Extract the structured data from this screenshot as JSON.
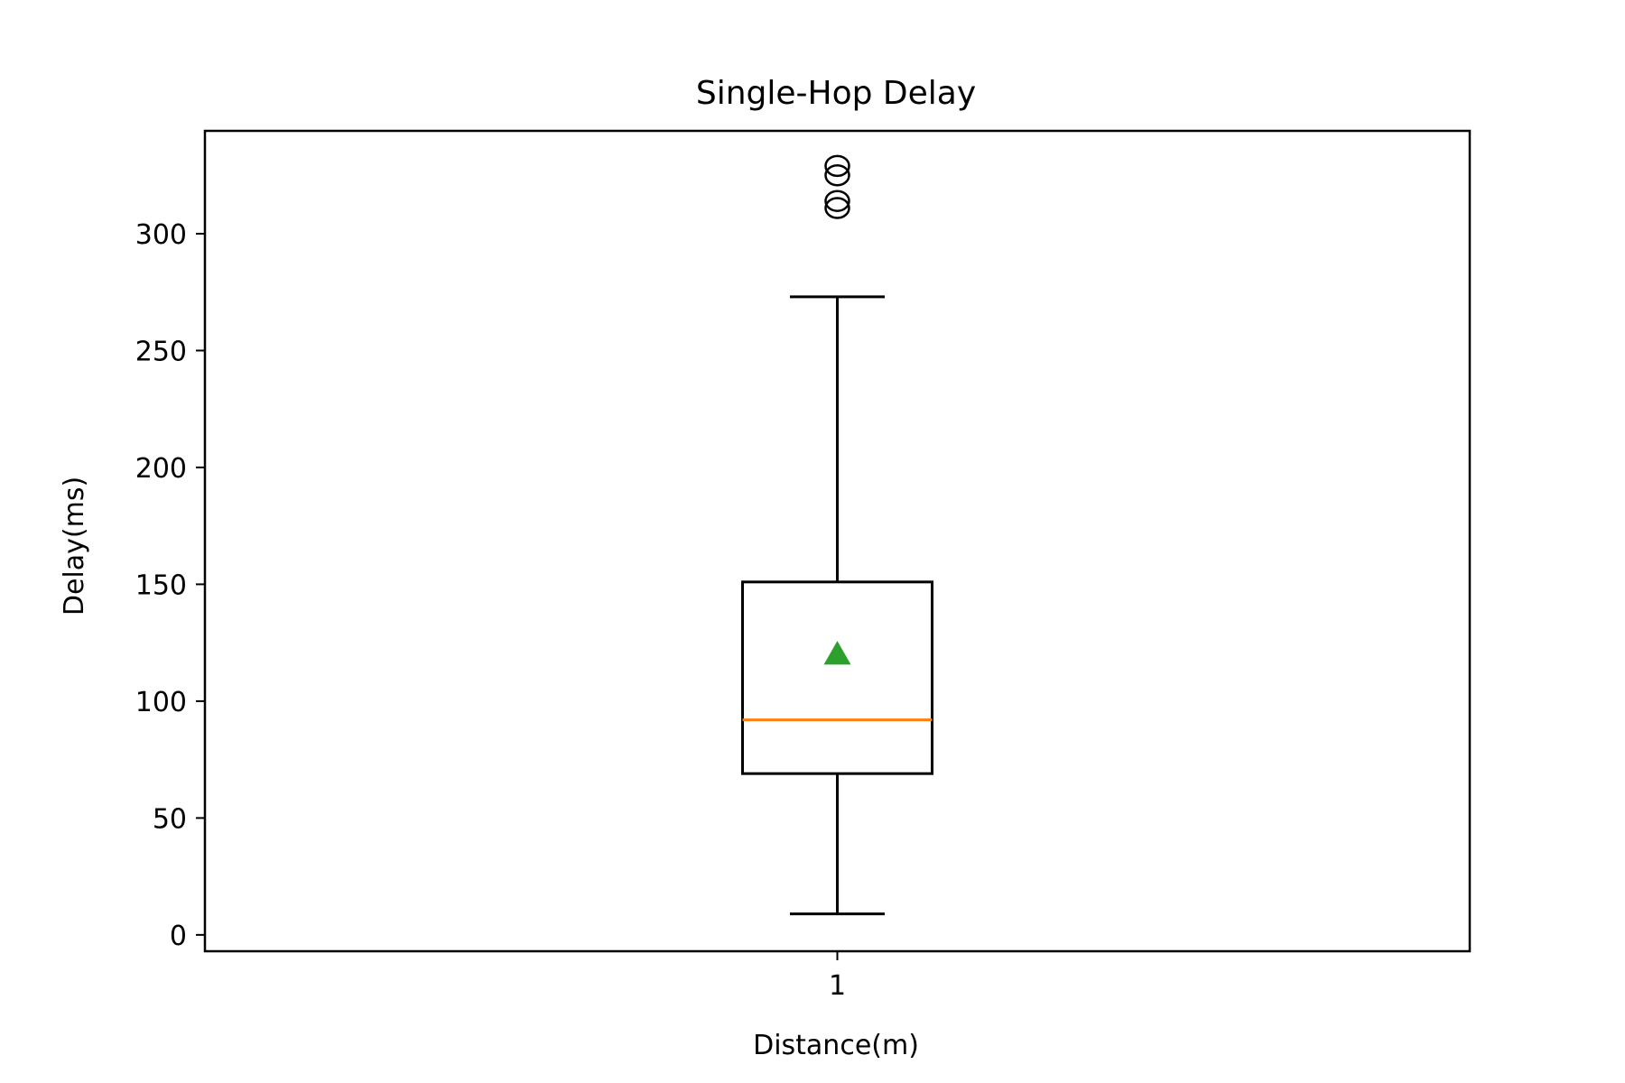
{
  "chart_data": {
    "type": "box",
    "title": "Single-Hop Delay",
    "xlabel": "Distance(m)",
    "ylabel": "Delay(ms)",
    "ylim": [
      -7,
      344
    ],
    "yticks": [
      0,
      50,
      100,
      150,
      200,
      250,
      300
    ],
    "categories": [
      "1"
    ],
    "grid": false,
    "legend": "none",
    "boxes": [
      {
        "category": "1",
        "whisker_low": 9,
        "q1": 69,
        "median": 92,
        "mean": 120,
        "q3": 151,
        "whisker_high": 273,
        "outliers": [
          311,
          314,
          325,
          329
        ]
      }
    ],
    "colors": {
      "box": "#000000",
      "median": "#ff7f0e",
      "mean": "#2ca02c"
    }
  }
}
